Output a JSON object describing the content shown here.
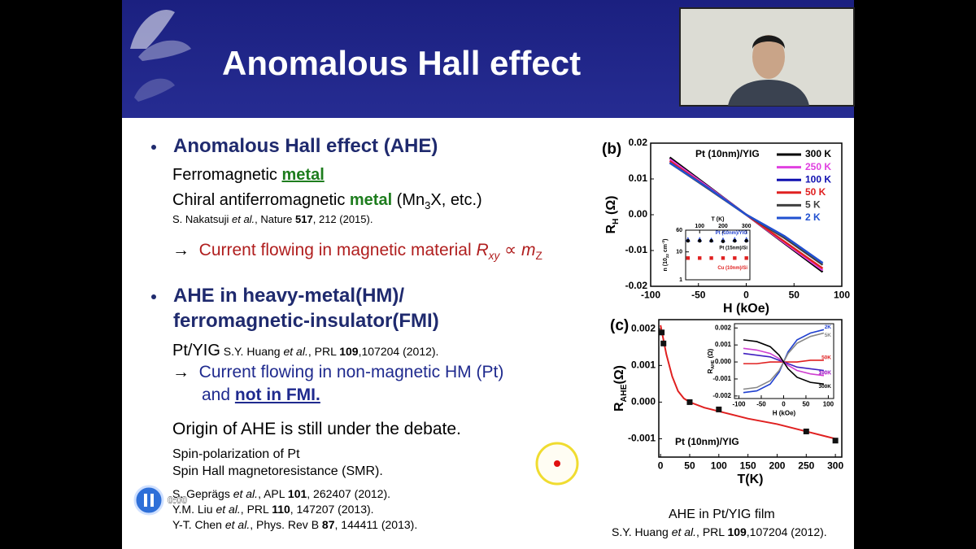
{
  "header": {
    "title": "Anomalous Hall effect"
  },
  "body": {
    "bullet1": "Anomalous Hall effect (AHE)",
    "line1": [
      "Ferromagnetic ",
      "metal"
    ],
    "line2": [
      "Chiral antiferromagnetic ",
      "metal",
      " (Mn",
      "3",
      "X, etc.)"
    ],
    "ref1": [
      "S. Nakatsuji ",
      "et al.",
      ", Nature ",
      "517",
      ", 212 (2015)."
    ],
    "line3": [
      "→",
      "Current flowing in magnetic material ",
      "R",
      "xy",
      " ∝ ",
      "m",
      "Z"
    ],
    "bullet2": [
      "AHE in heavy-metal(HM)/",
      "ferromagnetic-insulator(FMI)"
    ],
    "line4": [
      "Pt/YIG",
      " S.Y. Huang ",
      "et al.",
      ", PRL ",
      "109",
      ",107204 (2012)."
    ],
    "line5": [
      "→",
      "Current flowing in non-magnetic HM (Pt)"
    ],
    "line6": [
      "and ",
      "not in FMI."
    ],
    "line7": "Origin of AHE is still under the debate.",
    "line8": "Spin-polarization of Pt",
    "line9": "Spin Hall magnetoresistance (SMR).",
    "refs": [
      [
        "S. Geprägs ",
        "et al.",
        ", APL ",
        "101",
        ", 262407 (2012)."
      ],
      [
        "Y.M. Liu ",
        "et al.",
        ", PRL ",
        "110",
        ", 147207 (2013)."
      ],
      [
        "Y-T. Chen ",
        "et al.",
        ", Phys. Rev B ",
        "87",
        ", 144411 (2013)."
      ]
    ]
  },
  "figure": {
    "caption": "AHE in Pt/YIG film",
    "reference": [
      "S.Y. Huang ",
      "et al.",
      ", PRL ",
      "109",
      ",107204 (2012)."
    ]
  },
  "player": {
    "time": "0:00"
  },
  "chart_data": [
    {
      "type": "line",
      "panel": "(b)",
      "annotation": "Pt (10nm)/YIG",
      "xlabel": "H (kOe)",
      "ylabel": [
        "R",
        "H",
        " (Ω)"
      ],
      "xlim": [
        -100,
        100
      ],
      "xticks": [
        -100,
        -50,
        0,
        50,
        100
      ],
      "ylim": [
        -0.02,
        0.02
      ],
      "yticks": [
        -0.02,
        -0.01,
        {
          "value": 0,
          "label": "0.00"
        },
        0.01,
        0.02
      ],
      "legend": "upper right",
      "x": [
        -80,
        -40,
        0,
        40,
        80
      ],
      "series": [
        {
          "name": "300 K",
          "color": "#000000",
          "values": [
            0.016,
            0.008,
            0,
            -0.008,
            -0.016
          ]
        },
        {
          "name": "250 K",
          "color": "#e040e0",
          "values": [
            0.0155,
            0.0078,
            0,
            -0.0078,
            -0.0155
          ]
        },
        {
          "name": "100 K",
          "color": "#1010b0",
          "values": [
            0.0145,
            0.0075,
            0,
            -0.006,
            -0.0135
          ]
        },
        {
          "name": "50 K",
          "color": "#e02020",
          "values": [
            0.015,
            0.0075,
            0,
            -0.0075,
            -0.015
          ]
        },
        {
          "name": "5 K",
          "color": "#404040",
          "values": [
            0.0145,
            0.0073,
            0,
            -0.0065,
            -0.014
          ]
        },
        {
          "name": "2 K",
          "color": "#2050d0",
          "values": [
            0.0145,
            0.0075,
            0,
            -0.006,
            -0.0135
          ]
        }
      ]
    },
    {
      "type": "scatter",
      "xlabel": "T (K)",
      "ylabel": [
        "n (10",
        "22",
        " cm",
        "-3",
        ")"
      ],
      "xlim": [
        40,
        315
      ],
      "xticks": [
        100,
        200,
        300
      ],
      "xaxis": "top",
      "ylim": [
        1,
        60
      ],
      "yticks": [
        1,
        10,
        60
      ],
      "log_y": true,
      "legend": "labels",
      "x": [
        50,
        100,
        150,
        200,
        250,
        300
      ],
      "series": [
        {
          "name": "Pt (10nm)/YIG",
          "color": "#2040d0",
          "marker": "triangle",
          "values": [
            28,
            28,
            27,
            27,
            28,
            28
          ]
        },
        {
          "name": "Pt (15nm)/Si",
          "color": "#000000",
          "marker": "circle",
          "values": [
            25,
            25,
            25,
            24,
            25,
            25
          ]
        },
        {
          "name": "Cu (10nm)/Si",
          "color": "#e02020",
          "marker": "square",
          "values": [
            6,
            6,
            6,
            6,
            6,
            6
          ]
        }
      ]
    },
    {
      "type": "scatter",
      "panel": "(c)",
      "annotation": "Pt (10nm)/YIG",
      "xlabel": "T(K)",
      "ylabel": [
        "R",
        "AHE",
        "(Ω)"
      ],
      "xlim": [
        -3,
        311
      ],
      "xticks": [
        0,
        50,
        100,
        150,
        200,
        250,
        300
      ],
      "ylim": [
        -0.0015,
        0.00225
      ],
      "yticks": [
        -0.001,
        {
          "value": 0,
          "label": "0.000"
        },
        0.001,
        0.002
      ],
      "x": [
        2,
        5,
        50,
        100,
        250,
        300
      ],
      "series": [
        {
          "color": "#111111",
          "marker": "square",
          "values": [
            0.0019,
            0.0016,
            0,
            -0.0002,
            -0.0008,
            -0.00105
          ]
        }
      ],
      "fit": {
        "color": "#e02020",
        "x": [
          0,
          10,
          20,
          30,
          40,
          50,
          75,
          100,
          150,
          200,
          250,
          300
        ],
        "values": [
          0.0021,
          0.0013,
          0.0007,
          0.0003,
          0.0001,
          0,
          -0.00015,
          -0.00025,
          -0.00045,
          -0.0006,
          -0.0008,
          -0.001
        ]
      }
    },
    {
      "type": "line",
      "xlabel": "H (kOe)",
      "ylabel": [
        "R",
        "AHE",
        " (Ω)"
      ],
      "xlim": [
        -110,
        112
      ],
      "xticks": [
        -100,
        -50,
        0,
        50,
        100
      ],
      "ylim": [
        -0.00215,
        0.00225
      ],
      "yticks": [
        -0.002,
        -0.001,
        {
          "value": 0,
          "label": "0.000"
        },
        0.001,
        0.002
      ],
      "legend": "line end",
      "x": [
        -90,
        -60,
        -30,
        -10,
        0,
        10,
        30,
        60,
        90
      ],
      "series": [
        {
          "name": "2K",
          "color": "#2040d0",
          "values": [
            -0.0018,
            -0.0017,
            -0.0013,
            -0.0006,
            0,
            0.0006,
            0.0013,
            0.0017,
            0.0019
          ]
        },
        {
          "name": "5K",
          "color": "#888888",
          "values": [
            -0.0016,
            -0.0015,
            -0.0011,
            -0.0005,
            0,
            0.0005,
            0.0011,
            0.0015,
            0.0017
          ]
        },
        {
          "name": "50K",
          "color": "#e02020",
          "values": [
            -0.0001,
            -0.0001,
            0,
            0,
            0,
            0,
            0,
            0.0001,
            0.0001
          ]
        },
        {
          "name": "100K",
          "color": "#4020c0",
          "values": [
            0.0005,
            0.0004,
            0.0003,
            0.0001,
            0,
            -0.0001,
            -0.0003,
            -0.0004,
            -0.0005
          ]
        },
        {
          "name": "250K",
          "color": "#d040d0",
          "values": [
            0.0008,
            0.0007,
            0.0005,
            0.0002,
            0,
            -0.0002,
            -0.0005,
            -0.0007,
            -0.0008
          ]
        },
        {
          "name": "300K",
          "color": "#000000",
          "values": [
            0.0013,
            0.0012,
            0.0009,
            0.0004,
            0,
            -0.0004,
            -0.0009,
            -0.0012,
            -0.0013
          ]
        }
      ]
    }
  ]
}
